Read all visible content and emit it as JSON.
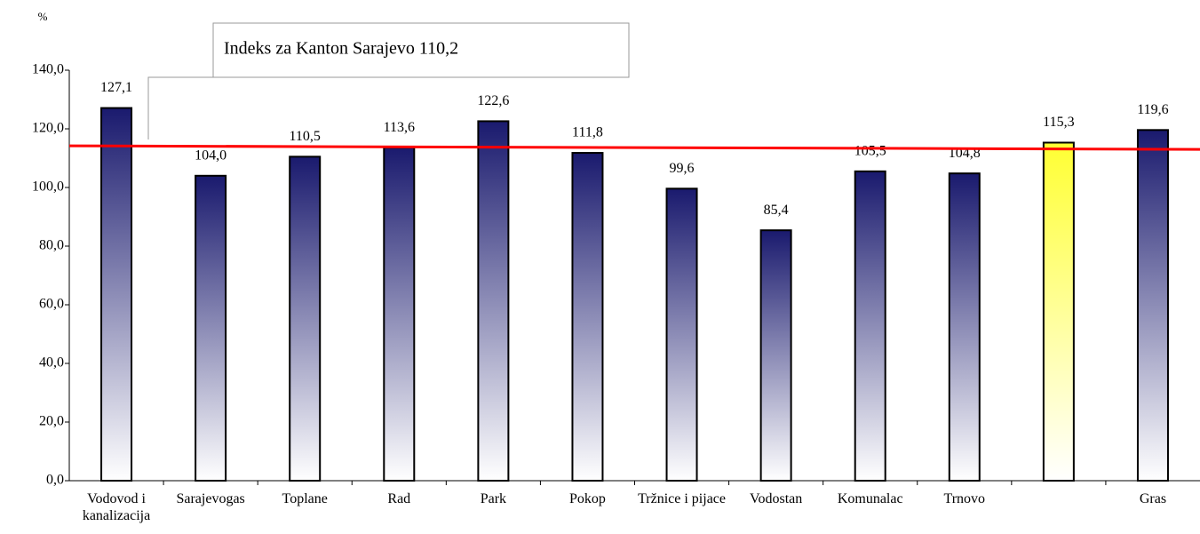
{
  "chart_data": {
    "type": "bar",
    "y_label": "%",
    "annotation": "Indeks za Kanton Sarajevo 110,2",
    "categories": [
      "Vodovod i kanalizacija",
      "Sarajevogas",
      "Toplane",
      "Rad",
      "Park",
      "Pokop",
      "Tržnice i pijace",
      "Vodostan",
      "Komunalac",
      "Trnovo",
      null,
      "Gras"
    ],
    "values": [
      127.1,
      104.0,
      110.5,
      113.6,
      122.6,
      111.8,
      99.6,
      85.4,
      105.5,
      104.8,
      115.3,
      119.6
    ],
    "value_labels": [
      "127,1",
      "104,0",
      "110,5",
      "113,6",
      "122,6",
      "111,8",
      "99,6",
      "85,4",
      "105,5",
      "104,8",
      "115,3",
      "119,6"
    ],
    "colors": [
      "#1a1a6e",
      "#1a1a6e",
      "#1a1a6e",
      "#1a1a6e",
      "#1a1a6e",
      "#1a1a6e",
      "#1a1a6e",
      "#1a1a6e",
      "#1a1a6e",
      "#1a1a6e",
      "#ffff33",
      "#1a1a6e"
    ],
    "reference_line": {
      "values": [
        114.2,
        113.0
      ],
      "color": "#ff0000"
    },
    "ylim": [
      0,
      140
    ],
    "yticks": [
      {
        "value": 0,
        "label": "0,0"
      },
      {
        "value": 20,
        "label": "20,0"
      },
      {
        "value": 40,
        "label": "40,0"
      },
      {
        "value": 60,
        "label": "60,0"
      },
      {
        "value": 80,
        "label": "80,0"
      },
      {
        "value": 100,
        "label": "100,0"
      },
      {
        "value": 120,
        "label": "120,0"
      },
      {
        "value": 140,
        "label": "140,0"
      }
    ],
    "grid": false
  }
}
